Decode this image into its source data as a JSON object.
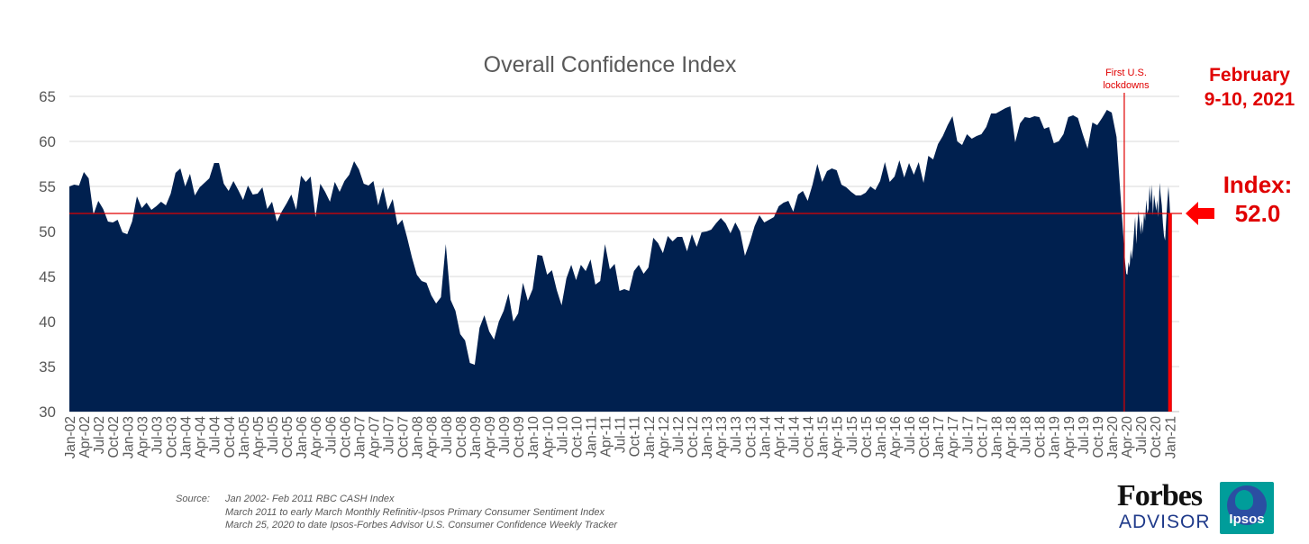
{
  "chart_data": {
    "type": "area",
    "title": "Overall Confidence Index",
    "ylim": [
      30,
      65
    ],
    "y_ticks": [
      "30",
      "35",
      "40",
      "45",
      "50",
      "55",
      "60",
      "65"
    ],
    "x_tick_labels": [
      "Jan-02",
      "Apr-02",
      "Jul-02",
      "Oct-02",
      "Jan-03",
      "Apr-03",
      "Jul-03",
      "Oct-03",
      "Jan-04",
      "Apr-04",
      "Jul-04",
      "Oct-04",
      "Jan-05",
      "Apr-05",
      "Jul-05",
      "Oct-05",
      "Jan-06",
      "Apr-06",
      "Jul-06",
      "Oct-06",
      "Jan-07",
      "Apr-07",
      "Jul-07",
      "Oct-07",
      "Jan-08",
      "Apr-08",
      "Jul-08",
      "Oct-08",
      "Jan-09",
      "Apr-09",
      "Jul-09",
      "Oct-09",
      "Jan-10",
      "Apr-10",
      "Jul-10",
      "Oct-10",
      "Jan-11",
      "Apr-11",
      "Jul-11",
      "Oct-11",
      "Jan-12",
      "Apr-12",
      "Jul-12",
      "Oct-12",
      "Jan-13",
      "Apr-13",
      "Jul-13",
      "Oct-13",
      "Jan-14",
      "Apr-14",
      "Jul-14",
      "Oct-14",
      "Jan-15",
      "Apr-15",
      "Jul-15",
      "Oct-15",
      "Jan-16",
      "Apr-16",
      "Jul-16",
      "Oct-16",
      "Jan-17",
      "Apr-17",
      "Jul-17",
      "Oct-17",
      "Jan-18",
      "Apr-18",
      "Jul-18",
      "Oct-18",
      "Jan-19",
      "Apr-19",
      "Jul-19",
      "Oct-19",
      "Jan-20",
      "Apr-20",
      "Jul-20",
      "Oct-20",
      "Jan-21"
    ],
    "x_range": [
      "2002-01",
      "2021-02"
    ],
    "grid": true,
    "fill_color": "#00204f",
    "monthly": {
      "start": "2002-01",
      "values": [
        55.0,
        55.2,
        55.1,
        56.6,
        55.9,
        51.9,
        53.4,
        52.5,
        51.1,
        51.0,
        51.3,
        49.9,
        49.7,
        51.1,
        53.9,
        52.6,
        53.2,
        52.4,
        52.8,
        53.3,
        52.9,
        54.2,
        56.5,
        57.0,
        55.0,
        56.4,
        54.0,
        54.9,
        55.4,
        55.9,
        57.6,
        57.6,
        55.3,
        54.5,
        55.6,
        54.6,
        53.5,
        55.1,
        54.1,
        54.2,
        54.9,
        52.5,
        53.3,
        51.1,
        52.2,
        53.1,
        54.1,
        52.4,
        56.2,
        55.5,
        56.1,
        51.6,
        55.3,
        54.4,
        53.3,
        55.5,
        54.4,
        55.6,
        56.3,
        57.8,
        56.9,
        55.3,
        55.1,
        55.6,
        52.9,
        54.9,
        52.4,
        53.6,
        50.7,
        51.3,
        49.3,
        47.1,
        45.2,
        44.5,
        44.3,
        42.9,
        42.0,
        42.7,
        48.6,
        42.4,
        41.2,
        38.6,
        37.9,
        35.4,
        35.2,
        39.3,
        40.7,
        38.9,
        38.0,
        40.0,
        41.2,
        43.1,
        40.0,
        40.9,
        44.3,
        42.3,
        43.6,
        47.4,
        47.3,
        45.2,
        45.7,
        43.5,
        41.8,
        44.8,
        46.3,
        44.6,
        46.3,
        45.6,
        46.9,
        44.1,
        44.5,
        48.6,
        45.8,
        46.4,
        43.4,
        43.6,
        43.4,
        45.6,
        46.3,
        45.3,
        46.0,
        49.3,
        48.7,
        47.6,
        49.5,
        48.9,
        49.4,
        49.4,
        47.8,
        49.7,
        48.3,
        49.9,
        50.0,
        50.2,
        50.9,
        51.5,
        50.9,
        49.8,
        51.0,
        50.0,
        47.3,
        48.8,
        50.6,
        51.8,
        51.0,
        51.3,
        51.6,
        52.8,
        53.2,
        53.4,
        52.2,
        54.1,
        54.5,
        53.4,
        55.2,
        57.5,
        55.5,
        56.7,
        57.0,
        56.8,
        55.2,
        54.9,
        54.4,
        54.0,
        54.0,
        54.3,
        55.0,
        54.6,
        55.6,
        57.7,
        55.5,
        56.1,
        57.9,
        56.0,
        57.6,
        56.3,
        57.7,
        55.4,
        58.4,
        58.0,
        59.7,
        60.6,
        61.8,
        62.8,
        60.0,
        59.6,
        60.8,
        60.3,
        60.6,
        60.8,
        61.6,
        63.1,
        63.1,
        63.4,
        63.7,
        63.9,
        59.9,
        62.0,
        62.7,
        62.6,
        62.8,
        62.7,
        61.4,
        61.6,
        59.8,
        60.0,
        60.8,
        62.7,
        62.9,
        62.6,
        60.8,
        59.2,
        62.1,
        61.8,
        62.6,
        63.5,
        63.2,
        60.5
      ]
    },
    "weekly": {
      "start": "2020-03-25",
      "values": [
        46.5,
        45.3,
        45.2,
        46.6,
        46.0,
        48.0,
        46.9,
        48.2,
        49.9,
        51.6,
        48.6,
        50.8,
        52.3,
        51.0,
        49.7,
        51.2,
        49.8,
        52.1,
        51.2,
        53.5,
        52.0,
        52.5,
        55.1,
        53.1,
        55.2,
        51.8,
        54.1,
        53.2,
        52.3,
        53.5,
        51.6,
        55.4,
        54.0,
        52.9,
        50.9,
        49.5,
        49.0,
        51.3,
        53.3,
        55.0,
        53.2,
        50.6,
        52.0
      ]
    },
    "current_index": 52.0,
    "annotations": {
      "lockdown_label": "First U.S. lockdowns",
      "lockdown_date": "2020-03",
      "date_callout": [
        "February",
        "9-10, 2021"
      ],
      "index_callout": [
        "Index:",
        "52.0"
      ]
    }
  },
  "source": {
    "label": "Source:",
    "lines": [
      "Jan 2002- Feb 2011 RBC CASH Index",
      "March 2011 to early March Monthly Refinitiv-Ipsos Primary Consumer Sentiment Index",
      "March 25, 2020 to date Ipsos-Forbes Advisor U.S. Consumer Confidence Weekly Tracker"
    ]
  },
  "logo": {
    "forbes": "Forbes",
    "advisor": "ADVISOR",
    "ipsos": "Ipsos"
  }
}
